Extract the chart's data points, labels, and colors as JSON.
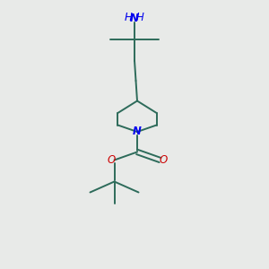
{
  "bg_color": "#e8eae8",
  "bond_color": "#2d6b5a",
  "N_color": "#0000ee",
  "O_color": "#cc0000",
  "line_width": 1.4,
  "font_size": 8.5,
  "fig_size": [
    3.0,
    3.0
  ],
  "dpi": 100,
  "xlim": [
    0,
    10
  ],
  "ylim": [
    0,
    10
  ]
}
